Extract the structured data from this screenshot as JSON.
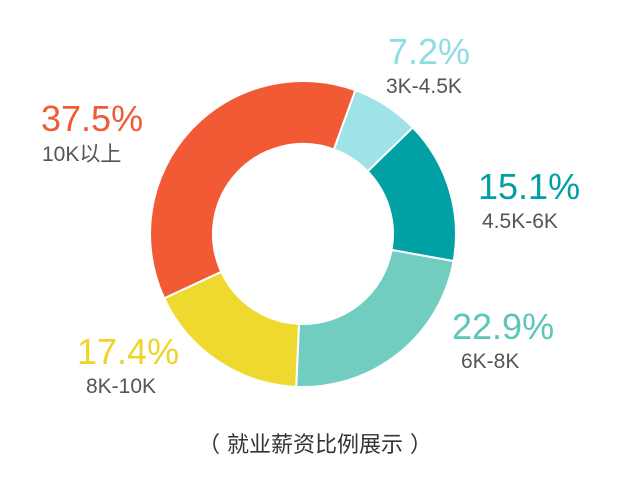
{
  "chart_data": {
    "type": "pie",
    "donut": true,
    "title": "",
    "caption": "（ 就业薪资比例展示 ）",
    "slices": [
      {
        "label": "3K-4.5K",
        "value": 7.2,
        "value_label": "7.2%",
        "color": "#9fe3e8",
        "label_color": "#8ddde3"
      },
      {
        "label": "4.5K-6K",
        "value": 15.1,
        "value_label": "15.1%",
        "color": "#00a0a4",
        "label_color": "#00a0a4"
      },
      {
        "label": "6K-8K",
        "value": 22.9,
        "value_label": "22.9%",
        "color": "#70cdc0",
        "label_color": "#5cc6b8"
      },
      {
        "label": "8K-10K",
        "value": 17.4,
        "value_label": "17.4%",
        "color": "#f0d92f",
        "label_color": "#eed52a"
      },
      {
        "label": "10K以上",
        "value": 37.5,
        "value_label": "37.5%",
        "color": "#f25a35",
        "label_color": "#f25a35"
      }
    ]
  }
}
